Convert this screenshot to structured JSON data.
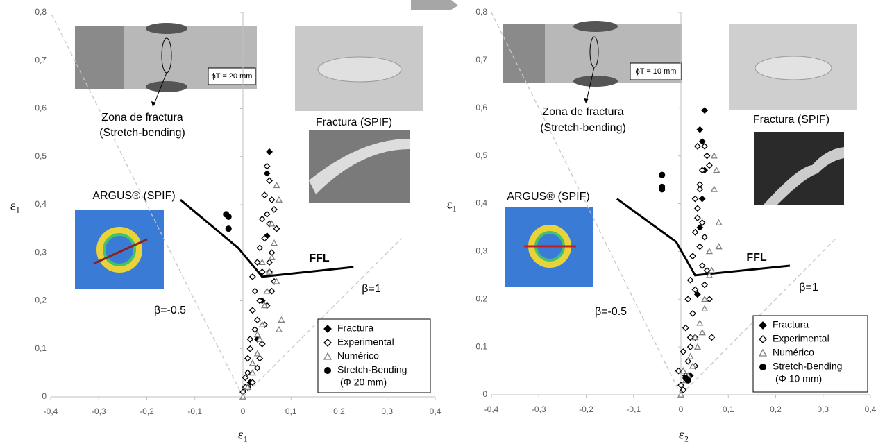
{
  "chart_data": [
    {
      "type": "scatter",
      "xlabel": "ε₁",
      "ylabel": "ε₁",
      "xlim": [
        -0.4,
        0.4
      ],
      "ylim": [
        0,
        0.8
      ],
      "xticks": [
        {
          "value": -0.4,
          "label": "-0,4"
        },
        {
          "value": -0.3,
          "label": "-0,3"
        },
        {
          "value": -0.2,
          "label": "-0,2"
        },
        {
          "value": -0.1,
          "label": "-0,1"
        },
        0,
        {
          "value": 0.1,
          "label": "0,1"
        },
        {
          "value": 0.2,
          "label": "0,2"
        },
        {
          "value": 0.3,
          "label": "0,3"
        },
        {
          "value": 0.4,
          "label": "0,4"
        }
      ],
      "yticks": [
        0,
        {
          "value": 0.1,
          "label": "0,1"
        },
        {
          "value": 0.2,
          "label": "0,2"
        },
        {
          "value": 0.3,
          "label": "0,3"
        },
        {
          "value": 0.4,
          "label": "0,4"
        },
        {
          "value": 0.5,
          "label": "0,5"
        },
        {
          "value": 0.6,
          "label": "0,6"
        },
        {
          "value": 0.7,
          "label": "0,7"
        },
        {
          "value": 0.8,
          "label": "0,8"
        }
      ],
      "annotations": [
        "Zona de fractura",
        "(Stretch-bending)",
        "Fractura (SPIF)",
        "ARGUS® (SPIF)",
        "ϕT = 20 mm"
      ],
      "legend_note": "(Φ 20 mm)",
      "series": [
        {
          "name": "Fractura",
          "marker": "diamond",
          "filled": true,
          "color": "#000000",
          "x": [
            0.055,
            0.05,
            0.05,
            0.055,
            0.04,
            0.03,
            0.015,
            0.01
          ],
          "values": [
            0.51,
            0.465,
            0.335,
            0.26,
            0.2,
            0.12,
            0.03,
            0.02
          ]
        },
        {
          "name": "Experimental",
          "marker": "diamond",
          "filled": false,
          "color": "#000000",
          "x": [
            0,
            0.005,
            0.01,
            0.015,
            0.02,
            0.02,
            0.025,
            0.03,
            0.03,
            0.035,
            0.035,
            0.04,
            0.04,
            0.045,
            0.045,
            0.05,
            0.05,
            0.055,
            0.055,
            0.06,
            0.06,
            0.065,
            0.065,
            0.07,
            0.01,
            0.015,
            0.025,
            0.03,
            0.04,
            0.05,
            0.055,
            0.06,
            0.035,
            0.045,
            0.02,
            0.005
          ],
          "values": [
            0.01,
            0.04,
            0.08,
            0.12,
            0.18,
            0.25,
            0.22,
            0.28,
            0.16,
            0.2,
            0.31,
            0.26,
            0.37,
            0.33,
            0.42,
            0.48,
            0.38,
            0.45,
            0.36,
            0.41,
            0.3,
            0.39,
            0.24,
            0.35,
            0.05,
            0.1,
            0.14,
            0.06,
            0.11,
            0.19,
            0.28,
            0.22,
            0.08,
            0.15,
            0.03,
            0.02
          ]
        },
        {
          "name": "Numérico",
          "marker": "triangle",
          "filled": false,
          "color": "#808080",
          "x": [
            0,
            0.01,
            0.02,
            0.03,
            0.035,
            0.04,
            0.045,
            0.05,
            0.055,
            0.06,
            0.065,
            0.07,
            0.075,
            0.08,
            0.07,
            0.06,
            0.075,
            0.04,
            0.03,
            0.02
          ],
          "values": [
            0,
            0.02,
            0.05,
            0.09,
            0.12,
            0.15,
            0.19,
            0.22,
            0.26,
            0.29,
            0.32,
            0.44,
            0.41,
            0.16,
            0.24,
            0.36,
            0.14,
            0.28,
            0.13,
            0.07
          ]
        },
        {
          "name": "Stretch-Bending",
          "marker": "circle",
          "filled": true,
          "color": "#000000",
          "x": [
            -0.035,
            -0.03,
            -0.03
          ],
          "values": [
            0.38,
            0.375,
            0.35
          ]
        }
      ],
      "lines": [
        {
          "name": "FFL",
          "color": "#000000",
          "dashed": false,
          "x": [
            -0.13,
            -0.01,
            0.04,
            0.23
          ],
          "values": [
            0.41,
            0.31,
            0.25,
            0.27
          ]
        },
        {
          "name": "β=1",
          "color": "#c8c8c8",
          "dashed": true,
          "x": [
            0,
            0.33
          ],
          "values": [
            0,
            0.33
          ]
        },
        {
          "name": "β=-0.5",
          "color": "#c8c8c8",
          "dashed": true,
          "x": [
            0,
            -0.4
          ],
          "values": [
            0,
            0.8
          ]
        }
      ]
    },
    {
      "type": "scatter",
      "xlabel": "ε₂",
      "ylabel": "ε₁",
      "xlim": [
        -0.4,
        0.4
      ],
      "ylim": [
        0,
        0.8
      ],
      "xticks": [
        {
          "value": -0.4,
          "label": "-0,4"
        },
        {
          "value": -0.3,
          "label": "-0,3"
        },
        {
          "value": -0.2,
          "label": "-0,2"
        },
        {
          "value": -0.1,
          "label": "-0,1"
        },
        0,
        {
          "value": 0.1,
          "label": "0,1"
        },
        {
          "value": 0.2,
          "label": "0,2"
        },
        {
          "value": 0.3,
          "label": "0,3"
        },
        {
          "value": 0.4,
          "label": "0,4"
        }
      ],
      "yticks": [
        0,
        {
          "value": 0.1,
          "label": "0,1"
        },
        {
          "value": 0.2,
          "label": "0,2"
        },
        {
          "value": 0.3,
          "label": "0,3"
        },
        {
          "value": 0.4,
          "label": "0,4"
        },
        {
          "value": 0.5,
          "label": "0,5"
        },
        {
          "value": 0.6,
          "label": "0,6"
        },
        {
          "value": 0.7,
          "label": "0,7"
        },
        {
          "value": 0.8,
          "label": "0,8"
        }
      ],
      "annotations": [
        "Zona de fractura",
        "(Stretch-bending)",
        "Fractura (SPIF)",
        "ARGUS® (SPIF)",
        "ϕT = 10 mm"
      ],
      "legend_note": "(Φ 10 mm)",
      "series": [
        {
          "name": "Fractura",
          "marker": "diamond",
          "filled": true,
          "color": "#000000",
          "x": [
            0.05,
            0.04,
            0.045,
            0.05,
            0.045,
            0.04,
            0.035,
            0.03,
            0.02
          ],
          "values": [
            0.595,
            0.555,
            0.53,
            0.47,
            0.41,
            0.35,
            0.21,
            0.12,
            0.04
          ]
        },
        {
          "name": "Experimental",
          "marker": "diamond",
          "filled": false,
          "color": "#000000",
          "x": [
            -0.005,
            0,
            0.005,
            0.01,
            0.015,
            0.02,
            0.025,
            0.03,
            0.035,
            0.04,
            0.045,
            0.05,
            0.055,
            0.06,
            0.03,
            0.035,
            0.04,
            0.045,
            0.05,
            0.02,
            0.025,
            0.03,
            0.015,
            0.01,
            0.04,
            0.045,
            0.05,
            0.055,
            0.035,
            0.06,
            0.065,
            0.02,
            0.005,
            0.03
          ],
          "values": [
            0.05,
            0.02,
            0.09,
            0.14,
            0.2,
            0.24,
            0.29,
            0.34,
            0.39,
            0.43,
            0.47,
            0.52,
            0.5,
            0.48,
            0.41,
            0.37,
            0.31,
            0.27,
            0.23,
            0.12,
            0.17,
            0.22,
            0.07,
            0.04,
            0.44,
            0.36,
            0.33,
            0.26,
            0.52,
            0.2,
            0.12,
            0.1,
            0.01,
            0.06
          ]
        },
        {
          "name": "Numérico",
          "marker": "triangle",
          "filled": false,
          "color": "#808080",
          "x": [
            0,
            0.005,
            0.01,
            0.02,
            0.03,
            0.04,
            0.05,
            0.06,
            0.07,
            0.075,
            0.08,
            0.07,
            0.06,
            0.05,
            0.045,
            0.035,
            0.025,
            0.015,
            0.08,
            0.065
          ],
          "values": [
            0,
            0.05,
            0.03,
            0.08,
            0.12,
            0.15,
            0.2,
            0.25,
            0.5,
            0.47,
            0.36,
            0.43,
            0.3,
            0.18,
            0.13,
            0.1,
            0.06,
            0.04,
            0.31,
            0.26
          ]
        },
        {
          "name": "Stretch-Bending",
          "marker": "circle",
          "filled": true,
          "color": "#000000",
          "x": [
            -0.04,
            -0.04,
            -0.04,
            0.015,
            0.01
          ],
          "values": [
            0.46,
            0.435,
            0.43,
            0.03,
            0.035
          ]
        }
      ],
      "lines": [
        {
          "name": "FFL",
          "color": "#000000",
          "dashed": false,
          "x": [
            -0.135,
            -0.01,
            0.03,
            0.23
          ],
          "values": [
            0.41,
            0.32,
            0.25,
            0.27
          ]
        },
        {
          "name": "β=1",
          "color": "#c8c8c8",
          "dashed": true,
          "x": [
            0,
            0.33
          ],
          "values": [
            0,
            0.33
          ]
        },
        {
          "name": "β=-0.5",
          "color": "#c8c8c8",
          "dashed": true,
          "x": [
            0,
            -0.4
          ],
          "values": [
            0,
            0.8
          ]
        }
      ]
    }
  ]
}
